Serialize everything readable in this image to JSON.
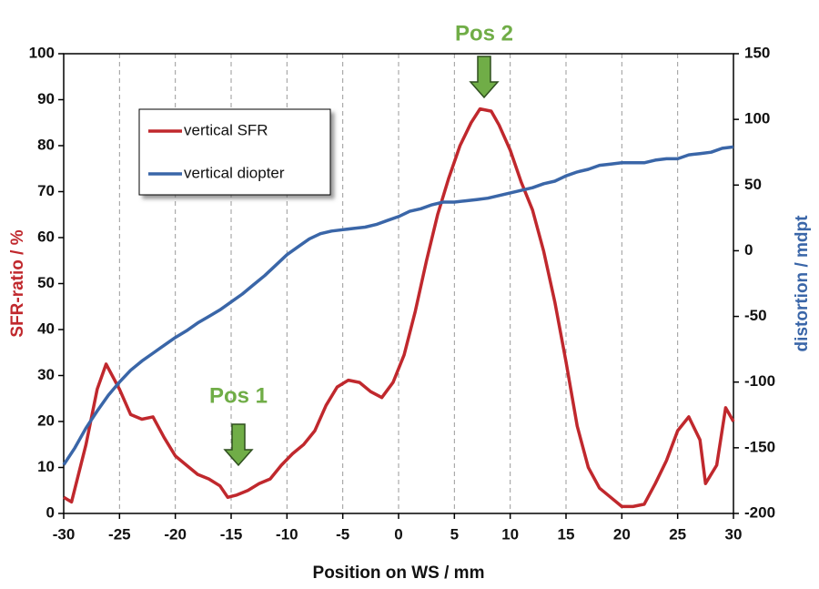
{
  "chart_data": {
    "type": "line",
    "xlabel": "Position on WS / mm",
    "ylabel": "SFR-ratio / %",
    "y2label": "distortion / mdpt",
    "xlim": [
      -30,
      30
    ],
    "xticks": [
      -30,
      -25,
      -20,
      -15,
      -10,
      -5,
      0,
      5,
      10,
      15,
      20,
      25,
      30
    ],
    "ylim": [
      0,
      100
    ],
    "yticks": [
      0,
      10,
      20,
      30,
      40,
      50,
      60,
      70,
      80,
      90,
      100
    ],
    "y2lim": [
      -200,
      150
    ],
    "y2ticks": [
      -200,
      -150,
      -100,
      -50,
      0,
      50,
      100,
      150
    ],
    "xgrid": true,
    "legend": "upper left",
    "annotations": [
      "Pos 1",
      "Pos 2"
    ],
    "series": [
      {
        "name": "vertical SFR",
        "color": "#c0282d",
        "x": [
          -30,
          -29.3,
          -28,
          -27,
          -26.2,
          -25,
          -24,
          -23,
          -22,
          -21,
          -20,
          -19,
          -18,
          -17,
          -16,
          -15.3,
          -14.5,
          -13.5,
          -12.5,
          -11.5,
          -10.5,
          -9.5,
          -8.5,
          -7.5,
          -6.5,
          -5.5,
          -4.5,
          -3.5,
          -2.5,
          -1.5,
          -0.5,
          0.5,
          1.5,
          2.5,
          3.5,
          4.5,
          5.5,
          6.5,
          7.3,
          8.3,
          9,
          10,
          11,
          12,
          13,
          14,
          15,
          16,
          17,
          18,
          19,
          20,
          21,
          22,
          23,
          24,
          25,
          26,
          27,
          27.5,
          28.5,
          29.3,
          30
        ],
        "values": [
          3.5,
          2.5,
          15,
          27,
          32.5,
          27,
          21.5,
          20.5,
          21,
          16.5,
          12.5,
          10.5,
          8.5,
          7.5,
          6,
          3.5,
          4,
          5,
          6.5,
          7.5,
          10.5,
          13,
          15,
          18,
          23.5,
          27.5,
          29,
          28.5,
          26.5,
          25.2,
          28.5,
          34.5,
          44,
          55,
          65,
          73,
          80,
          85,
          88,
          87.5,
          84.5,
          79,
          72,
          66,
          57,
          46,
          33,
          19,
          10,
          5.5,
          3.5,
          1.5,
          1.5,
          2,
          6.5,
          11.5,
          18,
          21,
          16,
          6.5,
          10.5,
          23,
          20
        ]
      },
      {
        "name": "vertical diopter",
        "color": "#3a66a8",
        "axis": "y2",
        "x": [
          -30,
          -29,
          -28,
          -27,
          -26,
          -25,
          -24,
          -23,
          -22,
          -21,
          -20,
          -19,
          -18,
          -17,
          -16,
          -15,
          -14,
          -13,
          -12,
          -11,
          -10,
          -9,
          -8,
          -7,
          -6,
          -5,
          -4,
          -3,
          -2,
          -1,
          0,
          1,
          2,
          3,
          4,
          5,
          6,
          7,
          8,
          9,
          10,
          11,
          12,
          13,
          14,
          15,
          16,
          17,
          18,
          19,
          20,
          21,
          22,
          23,
          24,
          25,
          26,
          27,
          28,
          29,
          30
        ],
        "values": [
          -163,
          -150,
          -135,
          -122,
          -110,
          -100,
          -91,
          -84,
          -78,
          -72,
          -66,
          -61,
          -55,
          -50,
          -45,
          -39,
          -33,
          -26,
          -19,
          -11,
          -3,
          3,
          9,
          13,
          15,
          16,
          17,
          18,
          20,
          23,
          26,
          30,
          32,
          35,
          37,
          37,
          38,
          39,
          40,
          42,
          44,
          46,
          48,
          51,
          53,
          57,
          60,
          62,
          65,
          66,
          67,
          67,
          67,
          69,
          70,
          70,
          73,
          74,
          75,
          78,
          79
        ]
      }
    ]
  }
}
